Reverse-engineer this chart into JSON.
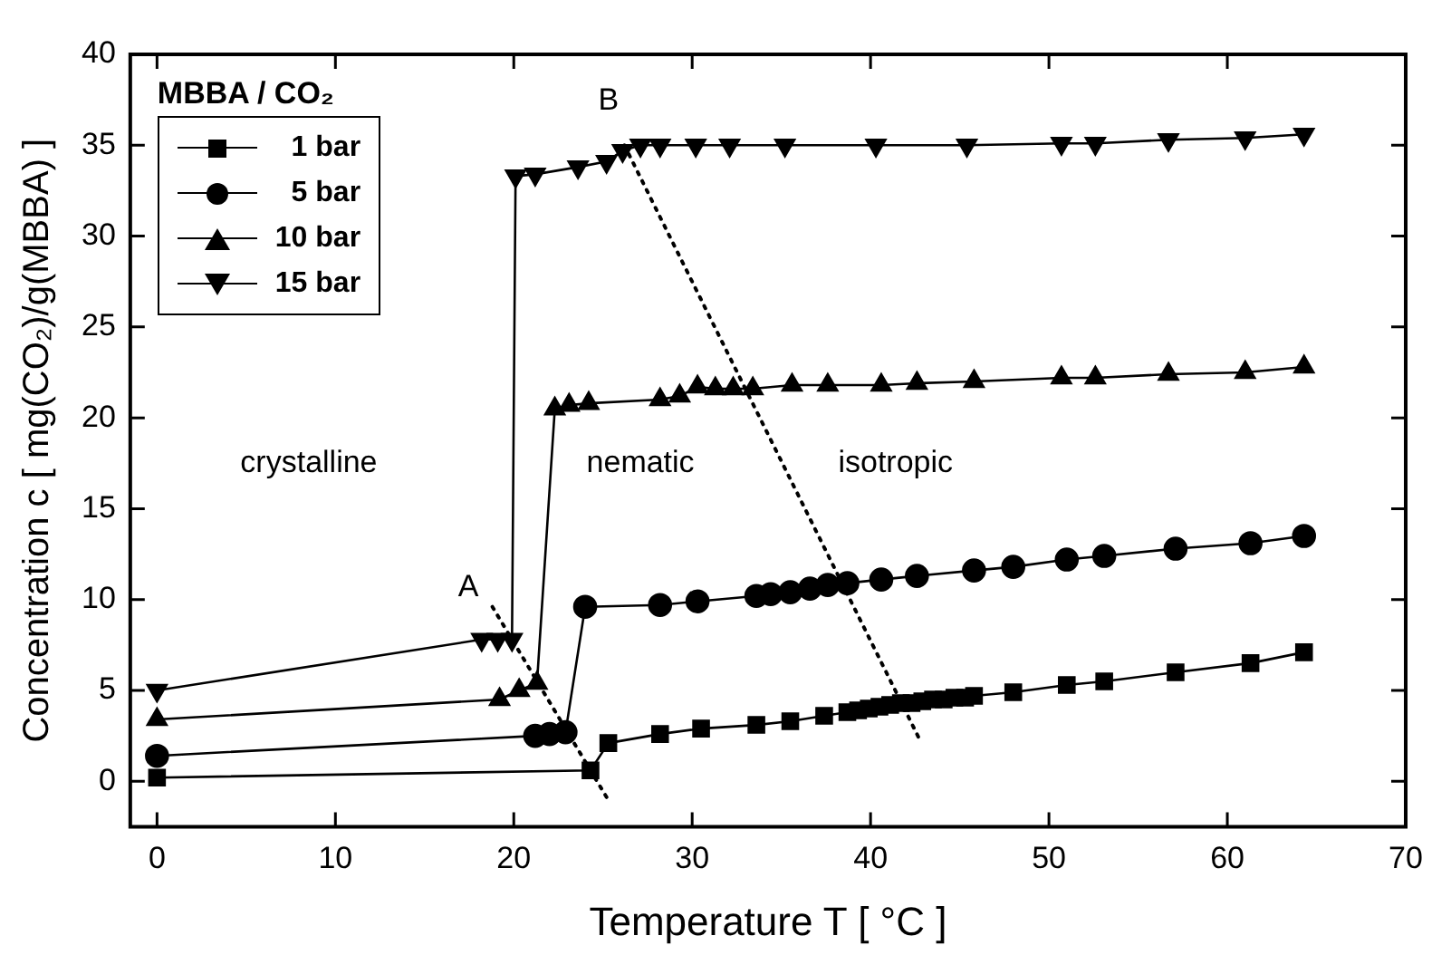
{
  "chart_data": {
    "type": "line",
    "xlabel": "Temperature T [ °C ]",
    "ylabel": "Concentration c [ mg(CO₂)/g(MBBA) ]",
    "legend_title": "MBBA / CO₂",
    "legend": "top left",
    "grid": false,
    "xlim": [
      -1.5,
      70
    ],
    "ylim": [
      -2.5,
      40
    ],
    "xticks": [
      0,
      10,
      20,
      30,
      40,
      50,
      60,
      70
    ],
    "yticks": [
      0,
      5,
      10,
      15,
      20,
      25,
      30,
      35,
      40
    ],
    "series": [
      {
        "name": "1 bar",
        "color": "#000000",
        "marker": "square",
        "x": [
          0,
          24.3,
          25.3,
          28.2,
          30.5,
          33.6,
          35.5,
          37.4,
          38.7,
          39.3,
          39.9,
          40.5,
          41.1,
          41.7,
          42.3,
          42.9,
          43.5,
          44.1,
          44.7,
          45.3,
          45.8,
          48,
          51,
          53.1,
          57.1,
          61.3,
          64.3
        ],
        "values": [
          0.2,
          0.6,
          2.1,
          2.6,
          2.9,
          3.1,
          3.3,
          3.6,
          3.8,
          3.9,
          4,
          4.1,
          4.2,
          4.3,
          4.3,
          4.4,
          4.5,
          4.5,
          4.6,
          4.6,
          4.7,
          4.9,
          5.3,
          5.5,
          6,
          6.5,
          7.1
        ]
      },
      {
        "name": "5 bar",
        "color": "#000000",
        "marker": "circle",
        "x": [
          0,
          21.2,
          22,
          22.9,
          24,
          28.2,
          30.3,
          33.6,
          34.4,
          35.5,
          36.6,
          37.6,
          38.7,
          40.6,
          42.6,
          45.8,
          48,
          51,
          53.1,
          57.1,
          61.3,
          64.3
        ],
        "values": [
          1.4,
          2.5,
          2.6,
          2.7,
          9.6,
          9.7,
          9.9,
          10.2,
          10.3,
          10.4,
          10.6,
          10.8,
          10.9,
          11.1,
          11.3,
          11.6,
          11.8,
          12.2,
          12.4,
          12.8,
          13.1,
          13.5
        ]
      },
      {
        "name": "10 bar",
        "color": "#000000",
        "marker": "triangle",
        "x": [
          0,
          19.2,
          20.3,
          21.3,
          22.3,
          23.1,
          24.2,
          28.2,
          29.3,
          30.3,
          31.3,
          32.3,
          33.4,
          35.6,
          37.6,
          40.6,
          42.6,
          45.8,
          50.7,
          52.6,
          56.7,
          61,
          64.3
        ],
        "values": [
          3.4,
          4.5,
          5,
          5.4,
          20.5,
          20.7,
          20.8,
          21,
          21.2,
          21.7,
          21.6,
          21.6,
          21.6,
          21.8,
          21.8,
          21.8,
          21.9,
          22,
          22.2,
          22.2,
          22.4,
          22.5,
          22.8
        ]
      },
      {
        "name": "15 bar",
        "color": "#000000",
        "marker": "triangle-down",
        "x": [
          0,
          18.2,
          19.1,
          19.9,
          20.1,
          21.2,
          23.6,
          25.2,
          26.1,
          27.1,
          28.2,
          30.2,
          32.1,
          35.2,
          40.3,
          45.4,
          50.7,
          52.6,
          56.7,
          61,
          64.3
        ],
        "values": [
          5,
          7.8,
          7.8,
          7.8,
          33.3,
          33.4,
          33.8,
          34.1,
          34.7,
          35,
          35,
          35,
          35,
          35,
          35,
          35,
          35.1,
          35.1,
          35.3,
          35.4,
          35.6
        ]
      },
      {
        "color": "#000000",
        "marker": "none",
        "line_style": "dotted",
        "x": [
          18.8,
          25.4
        ],
        "values": [
          9.6,
          -1.2
        ]
      },
      {
        "color": "#000000",
        "marker": "none",
        "line_style": "dotted",
        "x": [
          26.2,
          42.7
        ],
        "values": [
          35,
          2.4
        ]
      }
    ],
    "annotations": [
      "A",
      "B",
      "crystalline",
      "nematic",
      "isotropic"
    ]
  }
}
